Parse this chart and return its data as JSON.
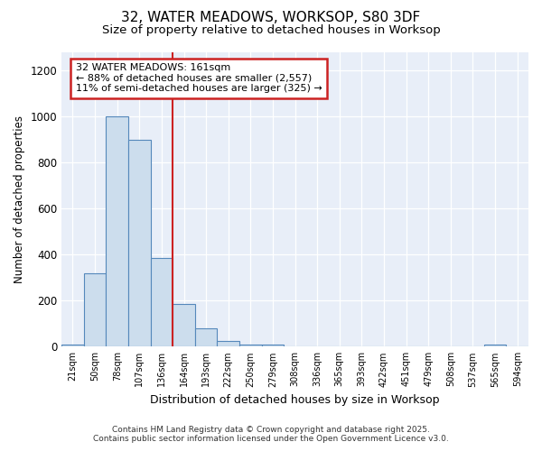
{
  "title1": "32, WATER MEADOWS, WORKSOP, S80 3DF",
  "title2": "Size of property relative to detached houses in Worksop",
  "xlabel": "Distribution of detached houses by size in Worksop",
  "ylabel": "Number of detached properties",
  "categories": [
    "21sqm",
    "50sqm",
    "78sqm",
    "107sqm",
    "136sqm",
    "164sqm",
    "193sqm",
    "222sqm",
    "250sqm",
    "279sqm",
    "308sqm",
    "336sqm",
    "365sqm",
    "393sqm",
    "422sqm",
    "451sqm",
    "479sqm",
    "508sqm",
    "537sqm",
    "565sqm",
    "594sqm"
  ],
  "values": [
    10,
    320,
    1000,
    900,
    385,
    185,
    80,
    25,
    10,
    10,
    0,
    0,
    0,
    0,
    0,
    0,
    0,
    0,
    0,
    10,
    0
  ],
  "bar_color": "#ccdded",
  "bar_edge_color": "#5588bb",
  "reference_line_x": 4.5,
  "reference_line_label": "32 WATER MEADOWS: 161sqm",
  "annotation_line1": "← 88% of detached houses are smaller (2,557)",
  "annotation_line2": "11% of semi-detached houses are larger (325) →",
  "annotation_box_facecolor": "#ffffff",
  "annotation_box_edgecolor": "#cc2222",
  "vline_color": "#cc2222",
  "ylim": [
    0,
    1280
  ],
  "yticks": [
    0,
    200,
    400,
    600,
    800,
    1000,
    1200
  ],
  "grid_color": "#d0d8e8",
  "background_color": "#e8eef8",
  "footer1": "Contains HM Land Registry data © Crown copyright and database right 2025.",
  "footer2": "Contains public sector information licensed under the Open Government Licence v3.0."
}
